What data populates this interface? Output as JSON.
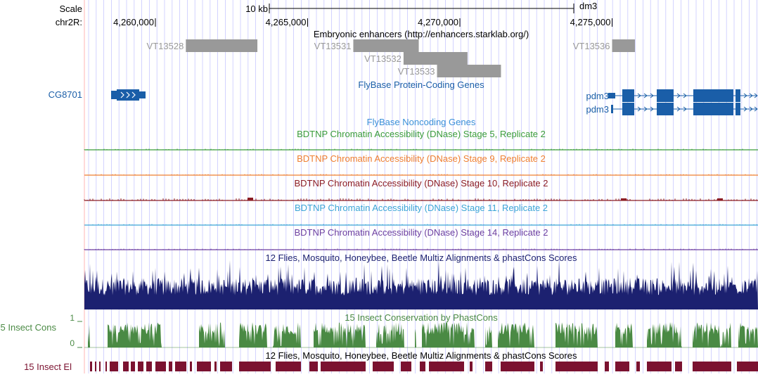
{
  "assembly": "dm3",
  "scale": {
    "label": "Scale",
    "bar_label": "10 kb"
  },
  "chrom": {
    "label": "chr2R:",
    "ticks": [
      {
        "text": "4,260,000",
        "pos": 4260000
      },
      {
        "text": "4,265,000",
        "pos": 4265000
      },
      {
        "text": "4,270,000",
        "pos": 4270000
      },
      {
        "text": "4,275,000",
        "pos": 4275000
      }
    ]
  },
  "enhancers": {
    "title": "Embryonic enhancers (http://enhancers.starklab.org/)",
    "items": [
      {
        "name": "VT13528",
        "start": 4261000,
        "end": 4263350
      },
      {
        "name": "VT13531",
        "start": 4266500,
        "end": 4268650
      },
      {
        "name": "VT13532",
        "start": 4268150,
        "end": 4270250
      },
      {
        "name": "VT13533",
        "start": 4269250,
        "end": 4271350
      },
      {
        "name": "VT13536",
        "start": 4275000,
        "end": 4275750
      }
    ],
    "color": "#999999"
  },
  "genes": {
    "title": "FlyBase Protein-Coding Genes",
    "items": [
      {
        "name": "CG8701",
        "start": 4259950,
        "end": 4260950,
        "strand": "+"
      },
      {
        "name": "pdm3",
        "start": 4275000,
        "end": 4279000,
        "strand": "+"
      },
      {
        "name": "pdm3",
        "start": 4275000,
        "end": 4279000,
        "strand": "+"
      }
    ],
    "color": "#1a5ea8"
  },
  "noncoding": {
    "title": "FlyBase Noncoding Genes"
  },
  "dnase": [
    {
      "title": "BDTNP Chromatin Accessibility (DNase) Stage 5, Replicate 2",
      "color": "#3a9c3a"
    },
    {
      "title": "BDTNP Chromatin Accessibility (DNase) Stage 9, Replicate 2",
      "color": "#ef7f30"
    },
    {
      "title": "BDTNP Chromatin Accessibility (DNase) Stage 10, Replicate 2",
      "color": "#8b1c24"
    },
    {
      "title": "BDTNP Chromatin Accessibility (DNase) Stage 11, Replicate 2",
      "color": "#3ca5d6"
    },
    {
      "title": "BDTNP Chromatin Accessibility (DNase) Stage 14, Replicate 2",
      "color": "#6c3fa0"
    }
  ],
  "multiz_title": "12 Flies, Mosquito, Honeybee, Beetle Multiz Alignments & phastCons Scores",
  "multiz_color": "#1c2170",
  "cons": {
    "side_label": "15 Insect Cons",
    "title": "15 Insect Conservation by PhastCons",
    "scale_max": "1",
    "scale_min": "0",
    "color": "#4a8a44"
  },
  "elements": {
    "side_label": "15 Insect El",
    "title": "12 Flies, Mosquito, Honeybee, Beetle Multiz Alignments & phastCons Scores",
    "color": "#7b1230"
  },
  "colors": {
    "grid": "#c8c8ff",
    "guide": "#ffb4b4",
    "text": "#000000",
    "gene_label": "#1a5ea8",
    "title_blue": "#1a5ea8",
    "noncoding_blue": "#3a8fd8"
  }
}
